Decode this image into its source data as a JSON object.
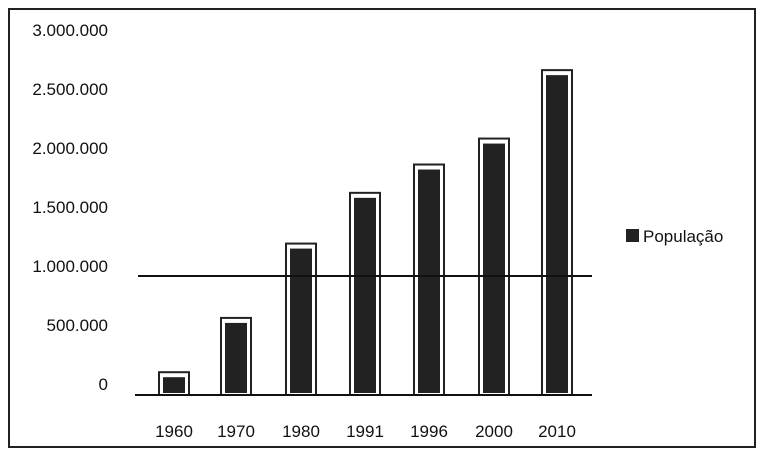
{
  "chart_data": {
    "type": "bar",
    "categories": [
      "1960",
      "1970",
      "1980",
      "1991",
      "1996",
      "2000",
      "2010"
    ],
    "series": [
      {
        "name": "População",
        "values": [
          100000,
          560000,
          1190000,
          1620000,
          1860000,
          2080000,
          2660000
        ]
      }
    ],
    "y_ticks": [
      "3.000.000",
      "2.500.000",
      "2.000.000",
      "1.500.000",
      "1.000.000",
      "500.000",
      "0"
    ],
    "y_tick_values": [
      3000000,
      2500000,
      2000000,
      1500000,
      1000000,
      500000,
      0
    ],
    "ylim": [
      0,
      3000000
    ],
    "title": "",
    "xlabel": "",
    "ylabel": "",
    "grid": false,
    "legend_position": "right",
    "bar_color": "#222222",
    "reference_line_value": 1000000
  }
}
